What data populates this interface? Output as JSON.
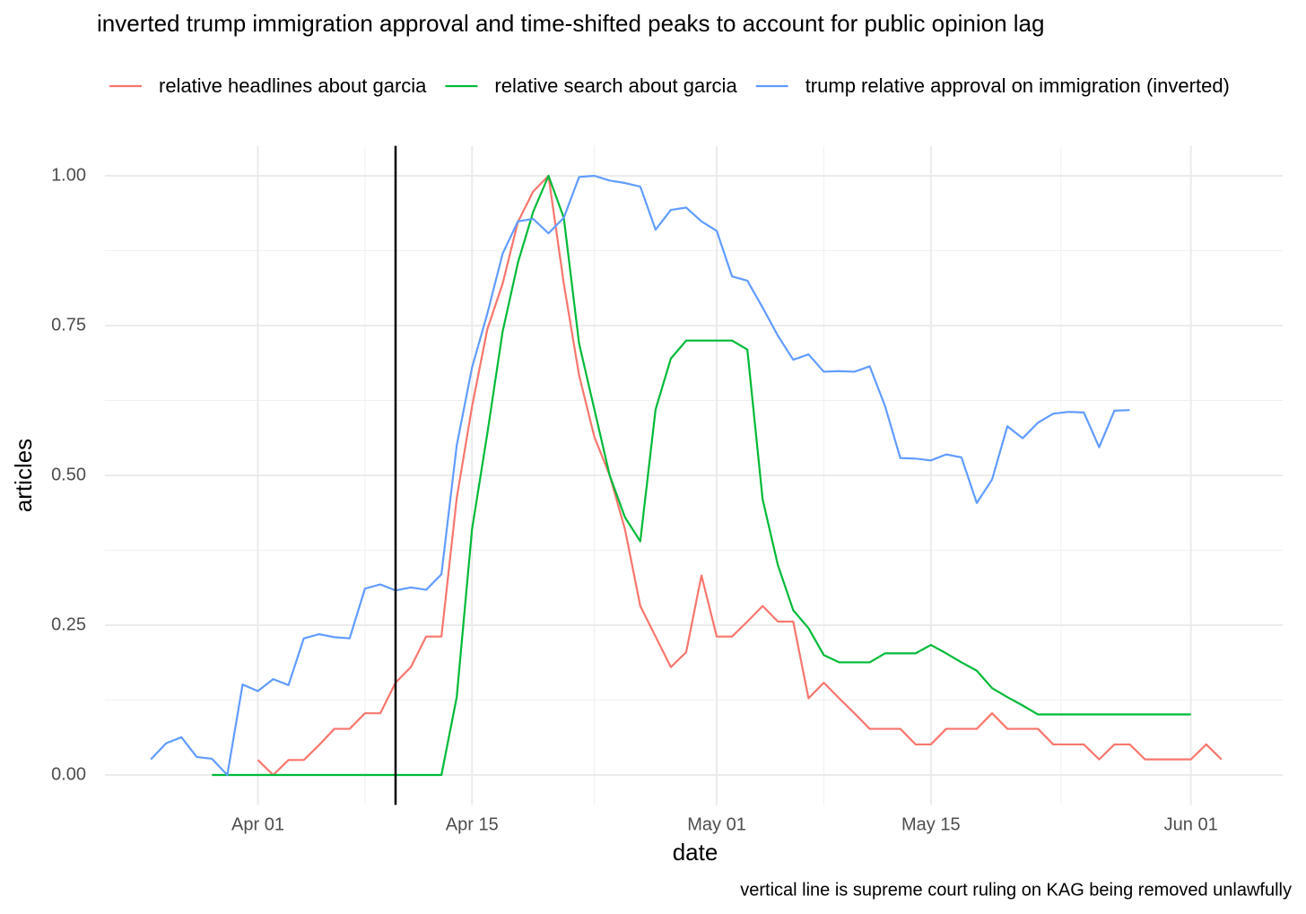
{
  "chart_data": {
    "type": "line",
    "title": "inverted trump immigration approval and time-shifted peaks to account for public opinion lag",
    "x_label": "date",
    "y_label": "articles",
    "caption": "vertical line is supreme court ruling on KAG being removed unlawfully",
    "vline": "Apr 10",
    "vline_color": "#000000",
    "legend": "top",
    "grid": true,
    "xlim": [
      "Mar 22",
      "Jun 07"
    ],
    "xticks": [
      "Apr 01",
      "Apr 15",
      "May 01",
      "May 15",
      "Jun 01"
    ],
    "ylim": [
      -0.05,
      1.05
    ],
    "yticks": [
      {
        "value": 0,
        "label": "0.00"
      },
      {
        "value": 0.25,
        "label": "0.25"
      },
      {
        "value": 0.5,
        "label": "0.50"
      },
      {
        "value": 0.75,
        "label": "0.75"
      },
      {
        "value": 1,
        "label": "1.00"
      }
    ],
    "x": [
      "Mar 25",
      "Mar 26",
      "Mar 27",
      "Mar 28",
      "Mar 29",
      "Mar 30",
      "Mar 31",
      "Apr 01",
      "Apr 02",
      "Apr 03",
      "Apr 04",
      "Apr 05",
      "Apr 06",
      "Apr 07",
      "Apr 08",
      "Apr 09",
      "Apr 10",
      "Apr 11",
      "Apr 12",
      "Apr 13",
      "Apr 14",
      "Apr 15",
      "Apr 16",
      "Apr 17",
      "Apr 18",
      "Apr 19",
      "Apr 20",
      "Apr 21",
      "Apr 22",
      "Apr 23",
      "Apr 24",
      "Apr 25",
      "Apr 26",
      "Apr 27",
      "Apr 28",
      "Apr 29",
      "Apr 30",
      "May 01",
      "May 02",
      "May 03",
      "May 04",
      "May 05",
      "May 06",
      "May 07",
      "May 08",
      "May 09",
      "May 10",
      "May 11",
      "May 12",
      "May 13",
      "May 14",
      "May 15",
      "May 16",
      "May 17",
      "May 18",
      "May 19",
      "May 20",
      "May 21",
      "May 22",
      "May 23",
      "May 24",
      "May 25",
      "May 26",
      "May 27",
      "May 28",
      "May 29",
      "May 30",
      "May 31",
      "Jun 01",
      "Jun 02",
      "Jun 03"
    ],
    "series": [
      {
        "name": "relative headlines about garcia",
        "color": "#F8766D",
        "values": [
          null,
          null,
          null,
          null,
          null,
          null,
          null,
          0.025,
          0,
          0.025,
          0.025,
          0.05,
          0.077,
          0.077,
          0.103,
          0.103,
          0.154,
          0.18,
          0.231,
          0.231,
          0.462,
          0.615,
          0.744,
          0.82,
          0.923,
          0.974,
          1.0,
          0.82,
          0.667,
          0.564,
          0.5,
          0.41,
          0.282,
          0.231,
          0.18,
          0.205,
          0.333,
          0.231,
          0.231,
          0.256,
          0.282,
          0.256,
          0.256,
          0.128,
          0.154,
          0.128,
          0.103,
          0.077,
          0.077,
          0.077,
          0.051,
          0.051,
          0.077,
          0.077,
          0.077,
          0.103,
          0.077,
          0.077,
          0.077,
          0.051,
          0.051,
          0.051,
          0.026,
          0.051,
          0.051,
          0.026,
          0.026,
          0.026,
          0.026,
          0.051,
          0.026
        ]
      },
      {
        "name": "relative search about garcia",
        "color": "#00BA38",
        "values": [
          null,
          null,
          null,
          null,
          0,
          0,
          0,
          0,
          0,
          0,
          0,
          0,
          0,
          0,
          0,
          0,
          0,
          0,
          0,
          0,
          0.13,
          0.41,
          0.57,
          0.74,
          0.855,
          0.94,
          1.0,
          0.93,
          0.72,
          0.61,
          0.5,
          0.43,
          0.39,
          0.61,
          0.695,
          0.725,
          0.725,
          0.725,
          0.725,
          0.71,
          0.46,
          0.35,
          0.275,
          0.245,
          0.2,
          0.188,
          0.188,
          0.188,
          0.203,
          0.203,
          0.203,
          0.217,
          0.203,
          0.188,
          0.174,
          0.145,
          0.13,
          0.116,
          0.101,
          0.101,
          0.101,
          0.101,
          0.101,
          0.101,
          0.101,
          0.101,
          0.101,
          0.101,
          0.101,
          null,
          null
        ]
      },
      {
        "name": "trump relative approval on immigration (inverted)",
        "color": "#619CFF",
        "values": [
          0.026,
          0.053,
          0.063,
          0.03,
          0.027,
          0,
          0.151,
          0.14,
          0.16,
          0.15,
          0.228,
          0.235,
          0.23,
          0.228,
          0.311,
          0.318,
          0.308,
          0.313,
          0.309,
          0.335,
          0.55,
          0.68,
          0.77,
          0.87,
          0.924,
          0.928,
          0.904,
          0.93,
          0.998,
          1.0,
          0.992,
          0.988,
          0.982,
          0.91,
          0.943,
          0.947,
          0.924,
          0.908,
          0.832,
          0.825,
          0.78,
          0.733,
          0.693,
          0.702,
          0.673,
          0.674,
          0.673,
          0.682,
          0.616,
          0.529,
          0.528,
          0.525,
          0.535,
          0.53,
          0.454,
          0.493,
          0.582,
          0.562,
          0.588,
          0.603,
          0.606,
          0.605,
          0.547,
          0.608,
          0.609,
          null,
          null,
          null,
          null,
          null,
          null
        ]
      }
    ]
  }
}
